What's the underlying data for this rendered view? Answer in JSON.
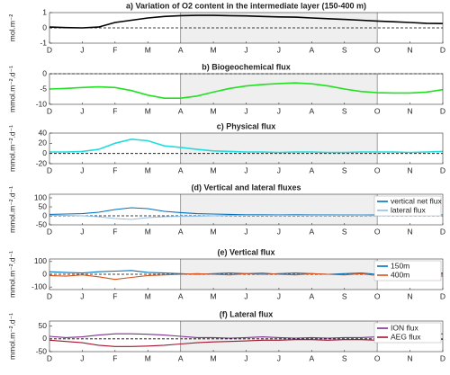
{
  "chart_data": [
    {
      "type": "line",
      "title": "a) Variation of O2 content in the intermediate layer (150-400 m)",
      "ylabel": "mol.m⁻²",
      "categories": [
        "D",
        null,
        "J",
        null,
        "F",
        null,
        "M",
        null,
        "A",
        null,
        "M",
        null,
        "J",
        null,
        "J",
        null,
        "A",
        null,
        "S",
        null,
        "O",
        null,
        "N",
        null,
        "D"
      ],
      "ylim": [
        -1,
        1
      ],
      "yticks": [
        -1,
        0,
        1
      ],
      "series": [
        {
          "color": "#000000",
          "values": [
            0.05,
            0.02,
            0,
            0.05,
            0.35,
            0.5,
            0.65,
            0.75,
            0.8,
            0.82,
            0.82,
            0.8,
            0.78,
            0.75,
            0.72,
            0.7,
            0.65,
            0.6,
            0.55,
            0.5,
            0.45,
            0.4,
            0.35,
            0.3,
            0.28
          ]
        }
      ]
    },
    {
      "type": "line",
      "title": "b) Biogeochemical flux",
      "ylabel": "mmol.m⁻².d⁻¹",
      "categories": [
        "D",
        null,
        "J",
        null,
        "F",
        null,
        "M",
        null,
        "A",
        null,
        "M",
        null,
        "J",
        null,
        "J",
        null,
        "A",
        null,
        "S",
        null,
        "O",
        null,
        "N",
        null,
        "D"
      ],
      "ylim": [
        -10,
        0
      ],
      "yticks": [
        -10,
        -5,
        0
      ],
      "series": [
        {
          "color": "#22e022",
          "values": [
            -5,
            -4.8,
            -4.5,
            -4.3,
            -4.5,
            -5.5,
            -7,
            -8,
            -8,
            -7.3,
            -6,
            -4.8,
            -4,
            -3.5,
            -3.2,
            -3,
            -3.3,
            -4,
            -5,
            -5.8,
            -6.2,
            -6.3,
            -6.3,
            -6,
            -5.2
          ]
        }
      ]
    },
    {
      "type": "line",
      "title": "c) Physical flux",
      "ylabel": "mmol.m⁻².d⁻¹",
      "categories": [
        "D",
        null,
        "J",
        null,
        "F",
        null,
        "M",
        null,
        "A",
        null,
        "M",
        null,
        "J",
        null,
        "J",
        null,
        "A",
        null,
        "S",
        null,
        "O",
        null,
        "N",
        null,
        "D"
      ],
      "ylim": [
        -20,
        40
      ],
      "yticks": [
        -20,
        0,
        20,
        40
      ],
      "series": [
        {
          "color": "#22dddd",
          "values": [
            3,
            3,
            4,
            8,
            20,
            28,
            25,
            15,
            12,
            8,
            5,
            4,
            3,
            3,
            2,
            3,
            3,
            2,
            2,
            3,
            3,
            3,
            2,
            3,
            4
          ]
        }
      ]
    },
    {
      "type": "line",
      "title": "(d) Vertical and lateral fluxes",
      "ylabel": "mmol.m⁻².d⁻¹",
      "categories": [
        "D",
        null,
        "J",
        null,
        "F",
        null,
        "M",
        null,
        "A",
        null,
        "M",
        null,
        "J",
        null,
        "J",
        null,
        "A",
        null,
        "S",
        null,
        "O",
        null,
        "N",
        null,
        "D"
      ],
      "ylim": [
        -50,
        120
      ],
      "yticks": [
        -50,
        0,
        50,
        100
      ],
      "series": [
        {
          "name": "vertical net flux",
          "color": "#0072bd",
          "values": [
            8,
            10,
            12,
            20,
            35,
            45,
            40,
            25,
            18,
            12,
            10,
            8,
            6,
            6,
            5,
            6,
            5,
            5,
            5,
            4,
            5,
            6,
            5,
            5,
            5
          ]
        },
        {
          "name": "lateral flux",
          "color": "#8fbfe8",
          "values": [
            3,
            2,
            0,
            -5,
            -15,
            -20,
            -10,
            -5,
            -3,
            -2,
            0,
            2,
            3,
            3,
            2,
            3,
            2,
            2,
            3,
            2,
            1,
            2,
            2,
            2,
            2
          ]
        }
      ]
    },
    {
      "type": "line",
      "title": "(e) Vertical flux",
      "ylabel": "mmol.m⁻².d⁻¹",
      "categories": [
        "D",
        null,
        "J",
        null,
        "F",
        null,
        "M",
        null,
        "A",
        null,
        "M",
        null,
        "J",
        null,
        "J",
        null,
        "A",
        null,
        "S",
        null,
        "O",
        null,
        "N",
        null,
        "D"
      ],
      "ylim": [
        -120,
        120
      ],
      "yticks": [
        -100,
        0,
        100
      ],
      "series": [
        {
          "name": "150m",
          "color": "#0072bd",
          "values": [
            20,
            15,
            10,
            20,
            25,
            30,
            15,
            10,
            5,
            0,
            5,
            10,
            5,
            0,
            5,
            10,
            5,
            0,
            5,
            10,
            0,
            5,
            10,
            5,
            10
          ]
        },
        {
          "name": "400m",
          "color": "#d95319",
          "values": [
            -10,
            -15,
            -5,
            -20,
            -40,
            -25,
            -10,
            -5,
            0,
            5,
            0,
            -5,
            5,
            10,
            0,
            -5,
            5,
            0,
            -5,
            5,
            -10,
            0,
            -5,
            -10,
            -15
          ]
        }
      ]
    },
    {
      "type": "line",
      "title": "(f) Lateral flux",
      "ylabel": "mmol.m⁻².d⁻¹",
      "categories": [
        "D",
        null,
        "J",
        null,
        "F",
        null,
        "M",
        null,
        "A",
        null,
        "M",
        null,
        "J",
        null,
        "J",
        null,
        "A",
        null,
        "S",
        null,
        "O",
        null,
        "N",
        null,
        "D"
      ],
      "ylim": [
        -50,
        70
      ],
      "yticks": [
        -50,
        0,
        50
      ],
      "series": [
        {
          "name": "ION flux",
          "color": "#7e2f8e",
          "values": [
            10,
            5,
            8,
            15,
            20,
            20,
            18,
            15,
            10,
            5,
            5,
            3,
            5,
            8,
            5,
            3,
            5,
            3,
            5,
            5,
            8,
            10,
            8,
            12,
            20
          ]
        },
        {
          "name": "AEG flux",
          "color": "#a2142f",
          "values": [
            -5,
            -10,
            -15,
            -25,
            -30,
            -30,
            -28,
            -25,
            -20,
            -15,
            -12,
            -10,
            -8,
            -5,
            -5,
            -3,
            -3,
            -5,
            -3,
            -3,
            -5,
            -5,
            -3,
            -3,
            -2
          ]
        }
      ]
    }
  ]
}
